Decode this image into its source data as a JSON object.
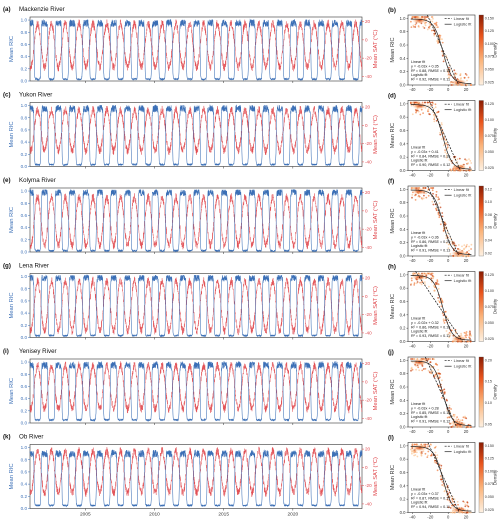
{
  "colors": {
    "ric": "#3b6fb6",
    "sat": "#e0474c",
    "fit_linear": "#111111",
    "fit_logistic": "#222222",
    "density_low": "#fdebd5",
    "density_high": "#8a1d03",
    "frame": "#222222"
  },
  "chart_data": [
    {
      "panel": "a",
      "type": "line",
      "title": "Mackenzie River",
      "x_range": [
        2001,
        2025
      ],
      "x_ticks": [
        "2005",
        "2010",
        "2015",
        "2020"
      ],
      "y_left": {
        "label": "Mean RIC",
        "ticks": [
          "0.0",
          "0.2",
          "0.4",
          "0.6",
          "0.8",
          "1.0"
        ],
        "range": [
          0,
          1.05
        ]
      },
      "y_right": {
        "label": "Mean SAT (°C)",
        "ticks": [
          "20",
          "0",
          "-20",
          "-40"
        ],
        "range": [
          -45,
          25
        ]
      },
      "series": [
        {
          "key": "ric",
          "color": "#3b6fb6",
          "winter": 0.95,
          "summer": 0.03
        },
        {
          "key": "sat",
          "color": "#e0474c",
          "min": -30,
          "max": 18
        }
      ]
    },
    {
      "panel": "b",
      "type": "scatter",
      "x_ticks": [
        "-40",
        "-20",
        "0",
        "20"
      ],
      "x_range": [
        -45,
        30
      ],
      "y_ticks": [
        "0.0",
        "0.2",
        "0.4",
        "0.6",
        "0.8",
        "1.0"
      ],
      "y_range": [
        0,
        1.05
      ],
      "ylabel": "Mean RIC",
      "xlabel": "",
      "legend": [
        "Linear fit",
        "Logistic fit"
      ],
      "legend_placement": "top-right",
      "annotation": [
        "Linear fit",
        "y = -0.03x + 0.35",
        "R² = 0.88, RMSE = 0.16",
        "Logistic fit",
        "R² = 0.92, RMSE = 0.11"
      ],
      "colorbar": {
        "label": "Density",
        "ticks": [
          "0.150",
          "0.125",
          "0.100",
          "0.075",
          "0.050",
          "0.025"
        ]
      },
      "linear": {
        "slope": -0.03,
        "intercept": 0.35
      }
    },
    {
      "panel": "c",
      "type": "line",
      "title": "Yukon River",
      "x_range": [
        2001,
        2025
      ],
      "x_ticks": [
        "2005",
        "2010",
        "2015",
        "2020"
      ],
      "y_left": {
        "label": "Mean RIC",
        "ticks": [
          "0.0",
          "0.2",
          "0.4",
          "0.6",
          "0.8",
          "1.0"
        ],
        "range": [
          0,
          1.05
        ]
      },
      "y_right": {
        "label": "Mean SAT (°C)",
        "ticks": [
          "20",
          "0",
          "-20",
          "-40"
        ],
        "range": [
          -45,
          25
        ]
      },
      "series": [
        {
          "key": "ric",
          "color": "#3b6fb6",
          "winter": 0.95,
          "summer": 0.03
        },
        {
          "key": "sat",
          "color": "#e0474c",
          "min": -28,
          "max": 17
        }
      ]
    },
    {
      "panel": "d",
      "type": "scatter",
      "x_ticks": [
        "-40",
        "-20",
        "0",
        "20"
      ],
      "x_range": [
        -45,
        30
      ],
      "y_ticks": [
        "0.0",
        "0.2",
        "0.4",
        "0.6",
        "0.8",
        "1.0"
      ],
      "y_range": [
        0,
        1.05
      ],
      "ylabel": "Mean RIC",
      "xlabel": "",
      "legend": [
        "Linear fit",
        "Logistic fit"
      ],
      "legend_placement": "top-right",
      "annotation": [
        "Linear fit",
        "y = -0.03x + 0.41",
        "R² = 0.84, RMSE = 0.16",
        "Logistic fit",
        "R² = 0.90, RMSE = 0.12"
      ],
      "colorbar": {
        "label": "Density",
        "ticks": [
          "0.125",
          "0.100",
          "0.075",
          "0.050",
          "0.025"
        ]
      },
      "linear": {
        "slope": -0.03,
        "intercept": 0.41
      }
    },
    {
      "panel": "e",
      "type": "line",
      "title": "Kolyma River",
      "x_range": [
        2001,
        2025
      ],
      "x_ticks": [
        "2005",
        "2010",
        "2015",
        "2020"
      ],
      "y_left": {
        "label": "Mean RIC",
        "ticks": [
          "0.0",
          "0.2",
          "0.4",
          "0.6",
          "0.8",
          "1.0"
        ],
        "range": [
          0,
          1.05
        ]
      },
      "y_right": {
        "label": "Mean SAT (°C)",
        "ticks": [
          "20",
          "0",
          "-20",
          "-40"
        ],
        "range": [
          -45,
          25
        ]
      },
      "series": [
        {
          "key": "ric",
          "color": "#3b6fb6",
          "winter": 0.98,
          "summer": 0.02
        },
        {
          "key": "sat",
          "color": "#e0474c",
          "min": -38,
          "max": 15
        }
      ]
    },
    {
      "panel": "f",
      "type": "scatter",
      "x_ticks": [
        "-40",
        "-20",
        "0",
        "20"
      ],
      "x_range": [
        -45,
        30
      ],
      "y_ticks": [
        "0.0",
        "0.2",
        "0.4",
        "0.6",
        "0.8",
        "1.0"
      ],
      "y_range": [
        0,
        1.05
      ],
      "ylabel": "Mean RIC",
      "xlabel": "",
      "legend": [
        "Linear fit",
        "Logistic fit"
      ],
      "legend_placement": "top-right",
      "annotation": [
        "Linear fit",
        "y = -0.03x + 0.36",
        "R² = 0.86, RMSE = 0.20",
        "Logistic fit",
        "R² = 0.91, RMSE = 0.13"
      ],
      "colorbar": {
        "label": "Density",
        "ticks": [
          "0.12",
          "0.10",
          "0.08",
          "0.06",
          "0.04",
          "0.02"
        ]
      },
      "linear": {
        "slope": -0.03,
        "intercept": 0.36
      }
    },
    {
      "panel": "g",
      "type": "line",
      "title": "Lena River",
      "x_range": [
        2001,
        2025
      ],
      "x_ticks": [
        "2005",
        "2010",
        "2015",
        "2020"
      ],
      "y_left": {
        "label": "Mean RIC",
        "ticks": [
          "0.0",
          "0.2",
          "0.4",
          "0.6",
          "0.8",
          "1.0"
        ],
        "range": [
          0,
          1.05
        ]
      },
      "y_right": {
        "label": "Mean SAT (°C)",
        "ticks": [
          "20",
          "0",
          "-20",
          "-40"
        ],
        "range": [
          -45,
          25
        ]
      },
      "series": [
        {
          "key": "ric",
          "color": "#3b6fb6",
          "winter": 0.98,
          "summer": 0.03
        },
        {
          "key": "sat",
          "color": "#e0474c",
          "min": -38,
          "max": 17
        }
      ]
    },
    {
      "panel": "h",
      "type": "scatter",
      "x_ticks": [
        "-40",
        "-20",
        "0",
        "20"
      ],
      "x_range": [
        -45,
        30
      ],
      "y_ticks": [
        "0.0",
        "0.2",
        "0.4",
        "0.6",
        "0.8",
        "1.0"
      ],
      "y_range": [
        0,
        1.05
      ],
      "ylabel": "Mean RIC",
      "xlabel": "",
      "legend": [
        "Linear fit",
        "Logistic fit"
      ],
      "legend_placement": "top-right",
      "annotation": [
        "Linear fit",
        "y = -0.02x + 0.32",
        "R² = 0.86, RMSE = 0.18",
        "Logistic fit",
        "R² = 0.93, RMSE = 0.11"
      ],
      "colorbar": {
        "label": "Density",
        "ticks": [
          "0.125",
          "0.100",
          "0.075",
          "0.050",
          "0.025"
        ]
      },
      "linear": {
        "slope": -0.02,
        "intercept": 0.32
      }
    },
    {
      "panel": "i",
      "type": "line",
      "title": "Yenisey River",
      "x_range": [
        2001,
        2025
      ],
      "x_ticks": [
        "2005",
        "2010",
        "2015",
        "2020"
      ],
      "y_left": {
        "label": "Mean RIC",
        "ticks": [
          "0.0",
          "0.2",
          "0.4",
          "0.6",
          "0.8",
          "1.0"
        ],
        "range": [
          0,
          1.05
        ]
      },
      "y_right": {
        "label": "Mean SAT (°C)",
        "ticks": [
          "20",
          "0",
          "-20",
          "-40"
        ],
        "range": [
          -45,
          25
        ]
      },
      "series": [
        {
          "key": "ric",
          "color": "#3b6fb6",
          "winter": 0.95,
          "summer": 0.05
        },
        {
          "key": "sat",
          "color": "#e0474c",
          "min": -30,
          "max": 18
        }
      ]
    },
    {
      "panel": "j",
      "type": "scatter",
      "x_ticks": [
        "-40",
        "-20",
        "0",
        "20"
      ],
      "x_range": [
        -45,
        30
      ],
      "y_ticks": [
        "0.0",
        "0.2",
        "0.4",
        "0.6",
        "0.8",
        "1.0"
      ],
      "y_range": [
        0,
        1.05
      ],
      "ylabel": "Mean RIC",
      "xlabel": "",
      "legend": [
        "Linear fit",
        "Logistic fit"
      ],
      "legend_placement": "top-right",
      "annotation": [
        "Linear fit",
        "y = -0.03x + 0.28",
        "R² = 0.85, RMSE = 0.16",
        "Logistic fit",
        "R² = 0.91, RMSE = 0.12"
      ],
      "colorbar": {
        "label": "Density",
        "ticks": [
          "0.20",
          "0.15",
          "0.10",
          "0.05"
        ]
      },
      "linear": {
        "slope": -0.03,
        "intercept": 0.28
      }
    },
    {
      "panel": "k",
      "type": "line",
      "title": "Ob River",
      "x_range": [
        2001,
        2025
      ],
      "x_ticks": [
        "2005",
        "2010",
        "2015",
        "2020"
      ],
      "y_left": {
        "label": "Mean RIC",
        "ticks": [
          "0.0",
          "0.2",
          "0.4",
          "0.6",
          "0.8",
          "1.0"
        ],
        "range": [
          0,
          1.05
        ]
      },
      "y_right": {
        "label": "Mean SAT (°C)",
        "ticks": [
          "20",
          "0",
          "-20",
          "-40"
        ],
        "range": [
          -45,
          25
        ]
      },
      "series": [
        {
          "key": "ric",
          "color": "#3b6fb6",
          "winter": 0.9,
          "summer": 0.05
        },
        {
          "key": "sat",
          "color": "#e0474c",
          "min": -28,
          "max": 18
        }
      ]
    },
    {
      "panel": "l",
      "type": "scatter",
      "x_ticks": [
        "-40",
        "-20",
        "0",
        "20"
      ],
      "x_range": [
        -45,
        30
      ],
      "y_ticks": [
        "0.0",
        "0.2",
        "0.4",
        "0.6",
        "0.8",
        "1.0"
      ],
      "y_range": [
        0,
        1.05
      ],
      "ylabel": "Mean RIC",
      "xlabel": "Mean SAT (°C)",
      "legend": [
        "Linear fit",
        "Logistic fit"
      ],
      "legend_placement": "top-right",
      "annotation": [
        "Linear fit",
        "y = -0.03x + 0.37",
        "R² = 0.87, RMSE = 0.17",
        "Logistic fit",
        "R² = 0.94, RMSE = 0.11"
      ],
      "colorbar": {
        "label": "Density",
        "ticks": [
          "0.150",
          "0.125",
          "0.100",
          "0.075",
          "0.050",
          "0.025"
        ]
      },
      "linear": {
        "slope": -0.03,
        "intercept": 0.37
      }
    }
  ]
}
